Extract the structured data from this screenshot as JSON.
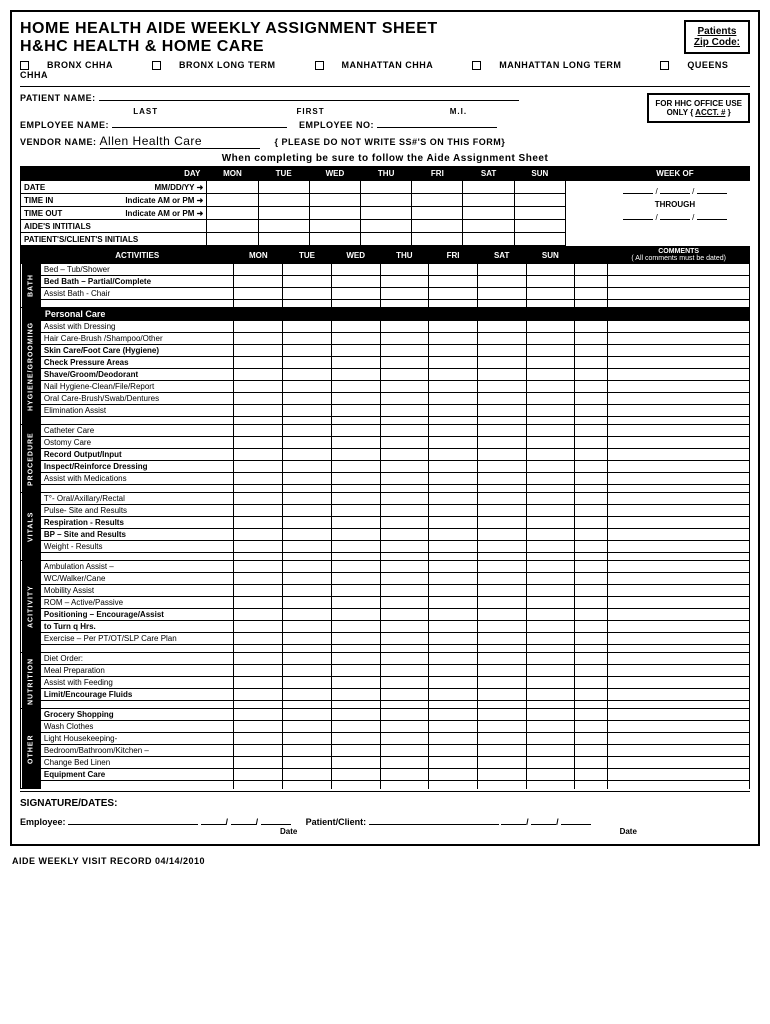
{
  "header": {
    "title1": "HOME HEALTH AIDE WEEKLY ASSIGNMENT SHEET",
    "title2": "H&HC HEALTH & HOME CARE",
    "zip_label1": "Patients",
    "zip_label2": "Zip Code:"
  },
  "locations": [
    "BRONX CHHA",
    "BRONX LONG TERM",
    "MANHATTAN CHHA",
    "MANHATTAN LONG TERM",
    "QUEENS CHHA"
  ],
  "patient": {
    "name_label": "PATIENT NAME:",
    "last": "LAST",
    "first": "FIRST",
    "mi": "M.I."
  },
  "employee": {
    "name_label": "EMPLOYEE NAME:",
    "no_label": "EMPLOYEE NO:"
  },
  "vendor": {
    "label": "VENDOR NAME:",
    "value": "Allen Health Care",
    "note": "{ PLEASE DO NOT WRITE SS#'S ON THIS FORM}"
  },
  "office_box": {
    "line1": "FOR HHC OFFICE USE",
    "line2": "ONLY { ACCT. # }"
  },
  "instruction": "When completing be sure to follow the Aide Assignment Sheet",
  "days": [
    "MON",
    "TUE",
    "WED",
    "THU",
    "FRI",
    "SAT",
    "SUN"
  ],
  "day_label": "DAY",
  "week_of": "WEEK OF",
  "through": "THROUGH",
  "time_rows": [
    {
      "label": "DATE",
      "hint": "MM/DD/YY",
      "arrow": "➜"
    },
    {
      "label": "TIME IN",
      "hint": "Indicate AM or PM",
      "arrow": "➜"
    },
    {
      "label": "TIME OUT",
      "hint": "Indicate AM or PM",
      "arrow": "➜"
    },
    {
      "label": "AIDE'S INTITIALS",
      "hint": "",
      "arrow": ""
    },
    {
      "label": "PATIENT'S/CLIENT'S INITIALS",
      "hint": "",
      "arrow": ""
    }
  ],
  "activities_header": "ACTIVITIES",
  "comments_header": "COMMENTS",
  "comments_sub": "( All comments must be dated)",
  "categories": [
    {
      "name": "BATH",
      "rows": [
        {
          "text": "Bed – Tub/Shower",
          "bold": false
        },
        {
          "text": "Bed Bath – Partial/Complete",
          "bold": true
        },
        {
          "text": "Assist Bath - Chair",
          "bold": false
        }
      ]
    },
    {
      "name": "HYGIENE/GROOMING",
      "header": "Personal Care",
      "rows": [
        {
          "text": "Assist with Dressing",
          "bold": false
        },
        {
          "text": "Hair Care-Brush /Shampoo/Other",
          "bold": false
        },
        {
          "text": "Skin Care/Foot Care (Hygiene)",
          "bold": true
        },
        {
          "text": "    Check Pressure Areas",
          "bold": true
        },
        {
          "text": "Shave/Groom/Deodorant",
          "bold": true
        },
        {
          "text": "Nail Hygiene-Clean/File/Report",
          "bold": false
        },
        {
          "text": "Oral Care-Brush/Swab/Dentures",
          "bold": false
        },
        {
          "text": "Elimination Assist",
          "bold": false
        }
      ]
    },
    {
      "name": "PROCEDURE",
      "rows": [
        {
          "text": "Catheter Care",
          "bold": false
        },
        {
          "text": "Ostomy Care",
          "bold": false
        },
        {
          "text": "Record Output/Input",
          "bold": true
        },
        {
          "text": "Inspect/Reinforce Dressing",
          "bold": true
        },
        {
          "text": "Assist with Medications",
          "bold": false
        }
      ]
    },
    {
      "name": "VITALS",
      "rows": [
        {
          "text": "T°- Oral/Axillary/Rectal",
          "bold": false
        },
        {
          "text": "Pulse- Site and Results",
          "bold": false
        },
        {
          "text": "Respiration - Results",
          "bold": true
        },
        {
          "text": "BP – Site and Results",
          "bold": true
        },
        {
          "text": "Weight - Results",
          "bold": false
        }
      ]
    },
    {
      "name": "ACITIVITY",
      "rows": [
        {
          "text": "Ambulation Assist –",
          "bold": false
        },
        {
          "text": "WC/Walker/Cane",
          "bold": false
        },
        {
          "text": "Mobility Assist",
          "bold": false
        },
        {
          "text": "ROM – Active/Passive",
          "bold": false
        },
        {
          "text": "Positioning – Encourage/Assist",
          "bold": true
        },
        {
          "text": "   to Turn q        Hrs.",
          "bold": true
        },
        {
          "text": "Exercise – Per PT/OT/SLP Care Plan",
          "bold": false
        }
      ]
    },
    {
      "name": "NUTRITION",
      "rows": [
        {
          "text": "Diet Order:",
          "bold": false
        },
        {
          "text": "Meal Preparation",
          "bold": false
        },
        {
          "text": "Assist with Feeding",
          "bold": false
        },
        {
          "text": "Limit/Encourage Fluids",
          "bold": true
        }
      ]
    },
    {
      "name": "OTHER",
      "rows": [
        {
          "text": "Grocery Shopping",
          "bold": true
        },
        {
          "text": "Wash Clothes",
          "bold": false
        },
        {
          "text": "Light Housekeeping-",
          "bold": false
        },
        {
          "text": "Bedroom/Bathroom/Kitchen –",
          "bold": false
        },
        {
          "text": "Change Bed Linen",
          "bold": false
        },
        {
          "text": "Equipment Care",
          "bold": true
        }
      ]
    }
  ],
  "signature": {
    "header": "SIGNATURE/DATES:",
    "employee": "Employee:",
    "patient": "Patient/Client:",
    "date": "Date"
  },
  "footer": "AIDE WEEKLY VISIT RECORD   04/14/2010"
}
